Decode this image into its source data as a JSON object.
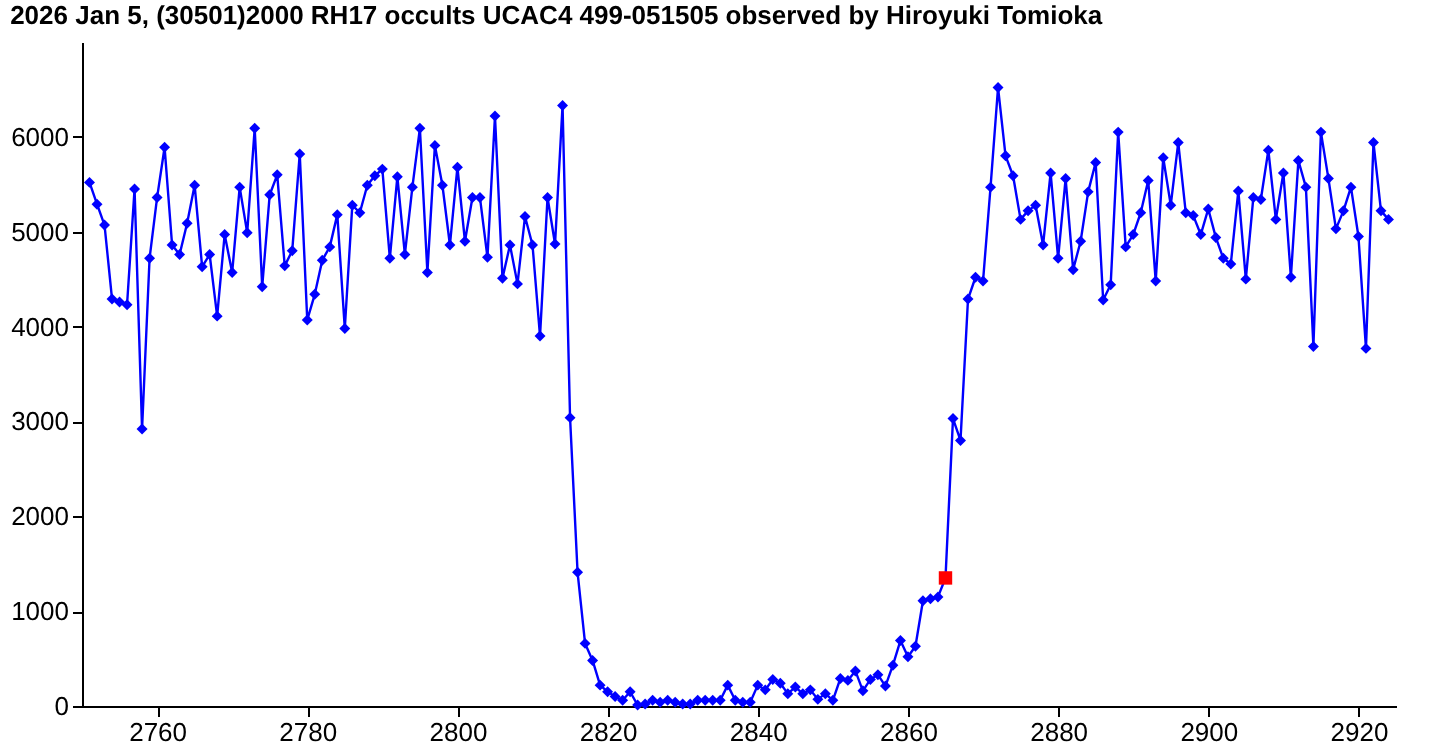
{
  "chart_data": {
    "type": "line",
    "title": "2026 Jan 5, (30501)2000 RH17 occults UCAC4 499-051505 observed by Hiroyuki Tomioka",
    "xlim": [
      2750,
      2925
    ],
    "xticks": [
      2760,
      2780,
      2800,
      2820,
      2840,
      2860,
      2880,
      2900,
      2920
    ],
    "ylim": [
      0,
      7000
    ],
    "yticks": [
      0,
      1000,
      2000,
      3000,
      4000,
      5000,
      6000
    ],
    "grid": false,
    "line_style": "solid",
    "series": [
      {
        "color": "#0000ff",
        "marker": "diamond",
        "x": [
          2751,
          2752,
          2753,
          2754,
          2755,
          2756,
          2757,
          2758,
          2759,
          2760,
          2761,
          2762,
          2763,
          2764,
          2765,
          2766,
          2767,
          2768,
          2769,
          2770,
          2771,
          2772,
          2773,
          2774,
          2775,
          2776,
          2777,
          2778,
          2779,
          2780,
          2781,
          2782,
          2783,
          2784,
          2785,
          2786,
          2787,
          2788,
          2789,
          2790,
          2791,
          2792,
          2793,
          2794,
          2795,
          2796,
          2797,
          2798,
          2799,
          2800,
          2801,
          2802,
          2803,
          2804,
          2805,
          2806,
          2807,
          2808,
          2809,
          2810,
          2811,
          2812,
          2813,
          2814,
          2815,
          2816,
          2817,
          2818,
          2819,
          2820,
          2821,
          2822,
          2823,
          2824,
          2825,
          2826,
          2827,
          2828,
          2829,
          2830,
          2831,
          2832,
          2833,
          2834,
          2835,
          2836,
          2837,
          2838,
          2839,
          2840,
          2841,
          2842,
          2843,
          2844,
          2845,
          2846,
          2847,
          2848,
          2849,
          2850,
          2851,
          2852,
          2853,
          2854,
          2855,
          2856,
          2857,
          2858,
          2859,
          2860,
          2861,
          2862,
          2863,
          2864,
          2865,
          2866,
          2867,
          2868,
          2869,
          2870,
          2871,
          2872,
          2873,
          2874,
          2875,
          2876,
          2877,
          2878,
          2879,
          2880,
          2881,
          2882,
          2883,
          2884,
          2885,
          2886,
          2887,
          2888,
          2889,
          2890,
          2891,
          2892,
          2893,
          2894,
          2895,
          2896,
          2897,
          2898,
          2899,
          2900,
          2901,
          2902,
          2903,
          2904,
          2905,
          2906,
          2907,
          2908,
          2909,
          2910,
          2911,
          2912,
          2913,
          2914,
          2915,
          2916,
          2917,
          2918,
          2919,
          2920,
          2921,
          2922,
          2923,
          2924
        ],
        "values": [
          5520,
          5290,
          5070,
          4290,
          4260,
          4230,
          5450,
          2920,
          4720,
          5360,
          5890,
          4860,
          4760,
          5090,
          5490,
          4630,
          4760,
          4110,
          4970,
          4570,
          5470,
          4990,
          6090,
          4420,
          5390,
          5600,
          4640,
          4800,
          5820,
          4070,
          4340,
          4700,
          4840,
          5180,
          3980,
          5280,
          5200,
          5490,
          5590,
          5660,
          4720,
          5580,
          4760,
          5470,
          6090,
          4570,
          5910,
          5490,
          4860,
          5680,
          4900,
          5360,
          5360,
          4730,
          6220,
          4510,
          4860,
          4450,
          5160,
          4860,
          3900,
          5360,
          4870,
          6330,
          3040,
          1410,
          660,
          480,
          220,
          150,
          100,
          60,
          150,
          10,
          20,
          60,
          40,
          60,
          40,
          20,
          20,
          60,
          60,
          60,
          60,
          220,
          60,
          40,
          40,
          220,
          170,
          280,
          240,
          130,
          200,
          130,
          170,
          70,
          130,
          60,
          290,
          270,
          370,
          160,
          280,
          330,
          210,
          430,
          690,
          520,
          630,
          1110,
          1130,
          1150,
          1350,
          3030,
          2800,
          4290,
          4520,
          4480,
          5470,
          6520,
          5800,
          5590,
          5130,
          5220,
          5280,
          4860,
          5620,
          4720,
          5560,
          4600,
          4900,
          5420,
          5730,
          4280,
          4440,
          6050,
          4840,
          4970,
          5200,
          5540,
          4480,
          5780,
          5280,
          5940,
          5200,
          5170,
          4970,
          5240,
          4940,
          4720,
          4660,
          5430,
          4500,
          5360,
          5340,
          5860,
          5130,
          5620,
          4520,
          5750,
          5470,
          3790,
          6050,
          5560,
          5030,
          5220,
          5470,
          4950,
          3770,
          5940,
          5220,
          5130
        ]
      },
      {
        "type": "scatter",
        "color": "#ff0000",
        "marker": "square",
        "x": [
          2865
        ],
        "values": [
          1350
        ]
      }
    ]
  }
}
